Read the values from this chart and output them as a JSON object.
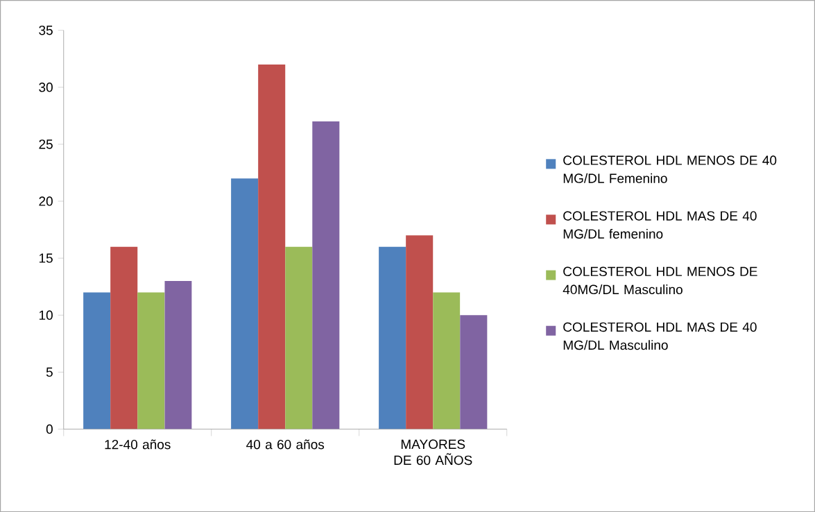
{
  "chart_data": {
    "type": "bar",
    "categories": [
      "12-40 años",
      "40 a 60 años",
      "MAYORES DE 60 AÑOS"
    ],
    "series": [
      {
        "name": "COLESTEROL HDL MENOS DE 40 MG/DL Femenino",
        "color": "#4f81bd",
        "values": [
          12,
          22,
          16
        ]
      },
      {
        "name": "COLESTEROL HDL MAS DE 40 MG/DL femenino",
        "color": "#c0504d",
        "values": [
          16,
          32,
          17
        ]
      },
      {
        "name": "COLESTEROL HDL MENOS DE 40MG/DL Masculino",
        "color": "#9bbb59",
        "values": [
          12,
          16,
          12
        ]
      },
      {
        "name": "COLESTEROL HDL MAS DE 40 MG/DL Masculino",
        "color": "#8064a2",
        "values": [
          13,
          27,
          10
        ]
      }
    ],
    "ylim": [
      0,
      35
    ],
    "yticks": [
      0,
      5,
      10,
      15,
      20,
      25,
      30,
      35
    ],
    "legend": "right"
  }
}
